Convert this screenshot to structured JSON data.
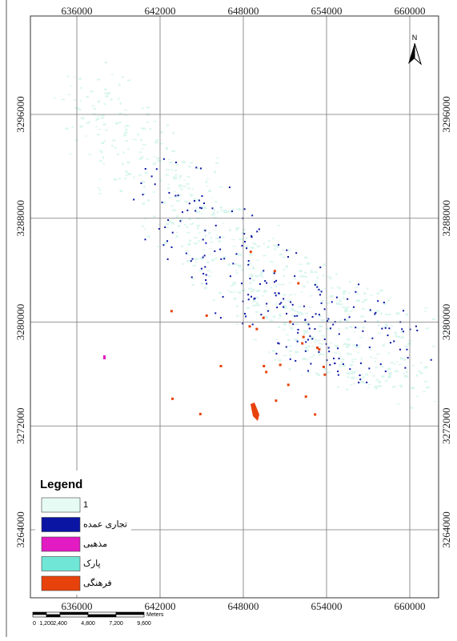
{
  "map": {
    "x_ticks": [
      636000,
      642000,
      648000,
      654000,
      660000
    ],
    "y_ticks": [
      3296000,
      3288000,
      3280000,
      3272000,
      3264000
    ],
    "north": "N",
    "legend": {
      "title": "Legend",
      "items": [
        {
          "label": "1",
          "color": "#e6fbf4"
        },
        {
          "label": "تجاری عمده",
          "color": "#0b15a3"
        },
        {
          "label": "مذهبی",
          "color": "#e21bc3"
        },
        {
          "label": "پارک",
          "color": "#6fe6d6"
        },
        {
          "label": "فرهنگی",
          "color": "#e8420c"
        }
      ]
    },
    "scale_bar": {
      "labels": [
        "0",
        "1,200",
        "2,400",
        "4,800",
        "7,200",
        "9,600"
      ],
      "unit": "Meters"
    }
  }
}
